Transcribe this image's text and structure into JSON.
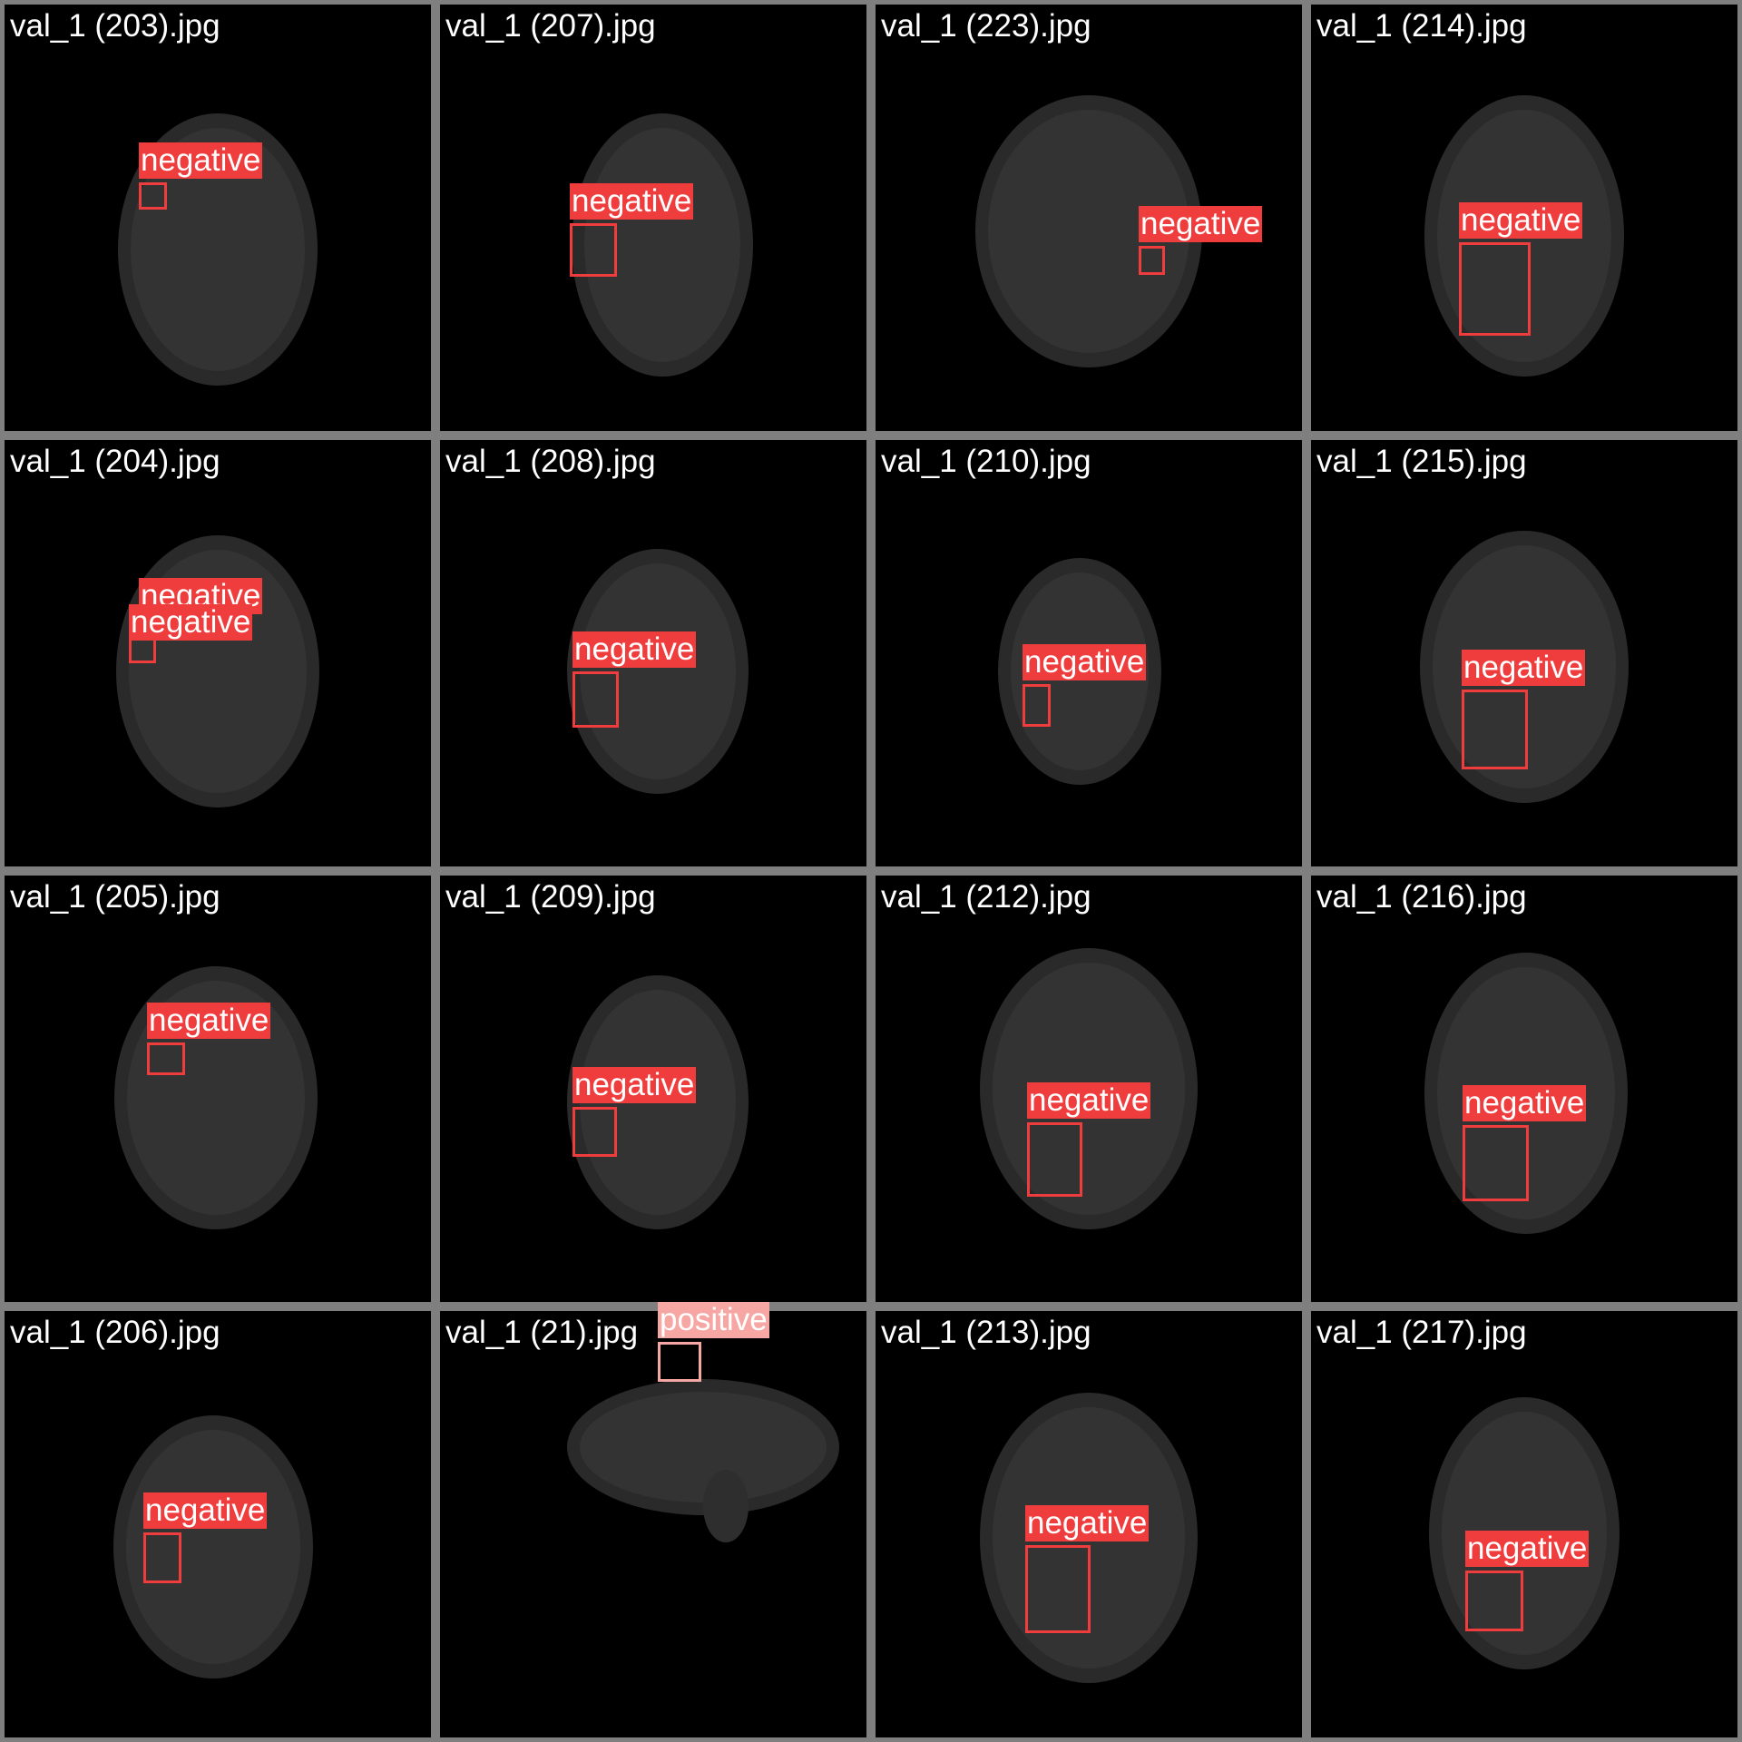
{
  "colors": {
    "negative": "#ef3c3d",
    "positive": "#f7a7a3",
    "background": "#7f7f7f"
  },
  "tiles": [
    {
      "filename": "val_1 (203).jpg",
      "detections": [
        {
          "class": "negative"
        }
      ]
    },
    {
      "filename": "val_1 (207).jpg",
      "detections": [
        {
          "class": "negative"
        }
      ]
    },
    {
      "filename": "val_1 (223).jpg",
      "detections": [
        {
          "class": "negative"
        }
      ]
    },
    {
      "filename": "val_1 (214).jpg",
      "detections": [
        {
          "class": "negative"
        }
      ]
    },
    {
      "filename": "val_1 (204).jpg",
      "detections": [
        {
          "class": "negative"
        },
        {
          "class": "negative"
        }
      ]
    },
    {
      "filename": "val_1 (208).jpg",
      "detections": [
        {
          "class": "negative"
        }
      ]
    },
    {
      "filename": "val_1 (210).jpg",
      "detections": [
        {
          "class": "negative"
        }
      ]
    },
    {
      "filename": "val_1 (215).jpg",
      "detections": [
        {
          "class": "negative"
        }
      ]
    },
    {
      "filename": "val_1 (205).jpg",
      "detections": [
        {
          "class": "negative"
        }
      ]
    },
    {
      "filename": "val_1 (209).jpg",
      "detections": [
        {
          "class": "negative"
        }
      ]
    },
    {
      "filename": "val_1 (212).jpg",
      "detections": [
        {
          "class": "negative"
        }
      ]
    },
    {
      "filename": "val_1 (216).jpg",
      "detections": [
        {
          "class": "negative"
        }
      ]
    },
    {
      "filename": "val_1 (206).jpg",
      "detections": [
        {
          "class": "negative"
        }
      ]
    },
    {
      "filename": "val_1 (21).jpg",
      "detections": [
        {
          "class": "positive"
        }
      ]
    },
    {
      "filename": "val_1 (213).jpg",
      "detections": [
        {
          "class": "negative"
        }
      ]
    },
    {
      "filename": "val_1 (217).jpg",
      "detections": [
        {
          "class": "negative"
        }
      ]
    }
  ]
}
